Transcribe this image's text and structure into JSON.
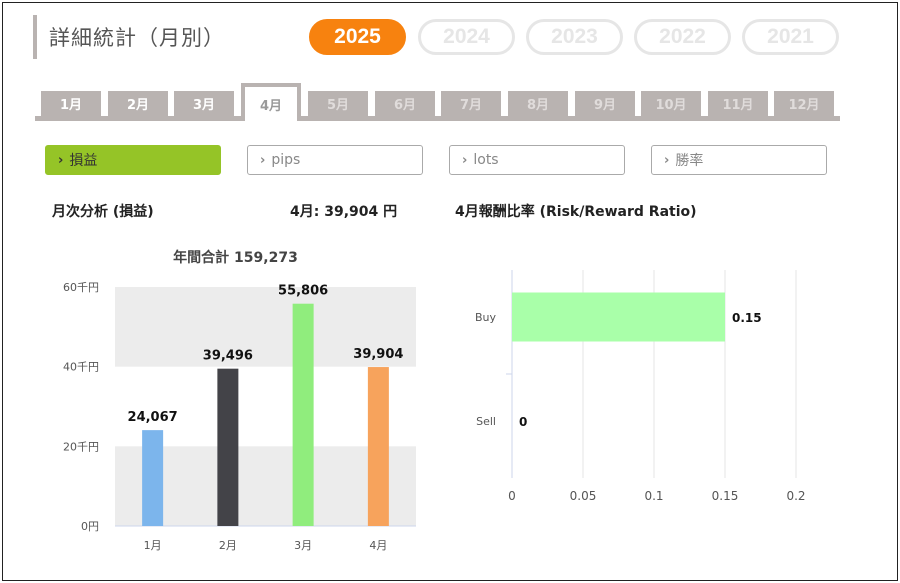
{
  "title": "詳細統計（月別）",
  "years": [
    {
      "label": "2025",
      "active": true
    },
    {
      "label": "2024",
      "active": false
    },
    {
      "label": "2023",
      "active": false
    },
    {
      "label": "2022",
      "active": false
    },
    {
      "label": "2021",
      "active": false
    }
  ],
  "months": [
    {
      "label": "1月",
      "state": "enabled"
    },
    {
      "label": "2月",
      "state": "enabled"
    },
    {
      "label": "3月",
      "state": "enabled"
    },
    {
      "label": "4月",
      "state": "active"
    },
    {
      "label": "5月",
      "state": "disabled"
    },
    {
      "label": "6月",
      "state": "disabled"
    },
    {
      "label": "7月",
      "state": "disabled"
    },
    {
      "label": "8月",
      "state": "disabled"
    },
    {
      "label": "9月",
      "state": "disabled"
    },
    {
      "label": "10月",
      "state": "disabled"
    },
    {
      "label": "11月",
      "state": "disabled"
    },
    {
      "label": "12月",
      "state": "disabled"
    }
  ],
  "metrics": [
    {
      "label": "損益",
      "active": true
    },
    {
      "label": "pips",
      "active": false
    },
    {
      "label": "lots",
      "active": false
    },
    {
      "label": "勝率",
      "active": false
    }
  ],
  "analysis": {
    "heading": "月次分析 (損益)",
    "current_value": "4月:  39,904 円",
    "rr_heading": "4月報酬比率 (Risk/Reward Ratio)"
  },
  "colors": {
    "accent": "#f7820f",
    "metric_active": "#95c427",
    "tab": "#b9b3b1"
  },
  "chart_data": [
    {
      "type": "bar",
      "title": "年間合計 159,273",
      "categories": [
        "1月",
        "2月",
        "3月",
        "4月"
      ],
      "values": [
        24067,
        39496,
        55806,
        39904
      ],
      "data_labels": [
        "24,067",
        "39,496",
        "55,806",
        "39,904"
      ],
      "colors": [
        "#7cb5ec",
        "#434348",
        "#90ed7d",
        "#f7a35c"
      ],
      "ylim": [
        0,
        60000
      ],
      "yticks": [
        0,
        20000,
        40000,
        60000
      ],
      "ytick_labels": [
        "0円",
        "20千円",
        "40千円",
        "60千円"
      ],
      "grid": "alternating bands"
    },
    {
      "type": "bar",
      "orientation": "horizontal",
      "categories": [
        "Buy",
        "Sell"
      ],
      "values": [
        0.15,
        0
      ],
      "data_labels": [
        "0.15",
        "0"
      ],
      "colors": [
        "#a9ffa9",
        "#a9ffa9"
      ],
      "xlim": [
        0,
        0.2
      ],
      "xticks": [
        0,
        0.05,
        0.1,
        0.15,
        0.2
      ],
      "xtick_labels": [
        "0",
        "0.05",
        "0.1",
        "0.15",
        "0.2"
      ],
      "grid": "vertical lines"
    }
  ]
}
